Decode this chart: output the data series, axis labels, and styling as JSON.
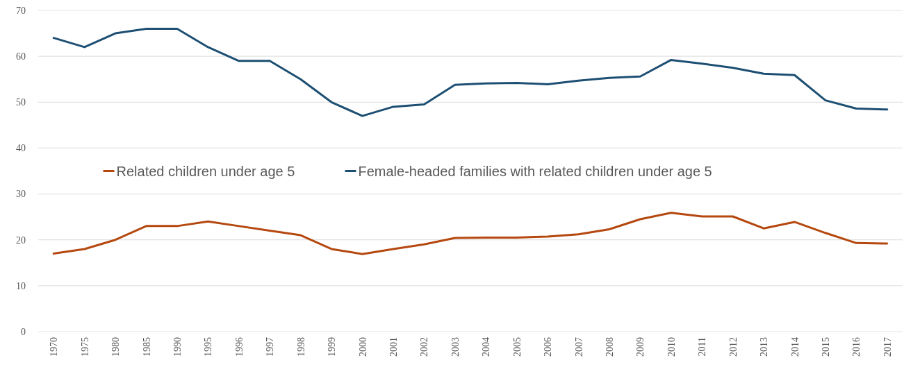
{
  "chart_data": {
    "type": "line",
    "categories": [
      "1970",
      "1975",
      "1980",
      "1985",
      "1990",
      "1995",
      "1996",
      "1997",
      "1998",
      "1999",
      "2000",
      "2001",
      "2002",
      "2003",
      "2004",
      "2005",
      "2006",
      "2007",
      "2008",
      "2009",
      "2010",
      "2011",
      "2012",
      "2013",
      "2014",
      "2015",
      "2016",
      "2017"
    ],
    "series": [
      {
        "name": "Related children under age 5",
        "color": "#b5480f",
        "values": [
          17,
          18,
          20,
          23,
          23,
          24,
          23,
          22,
          21,
          18,
          16.9,
          18,
          19,
          20.4,
          20.5,
          20.5,
          20.7,
          21.2,
          22.3,
          24.5,
          25.9,
          25.1,
          25.1,
          22.5,
          23.9,
          21.5,
          19.3,
          19.2
        ]
      },
      {
        "name": "Female-headed families with related children under age 5",
        "color": "#1d4f73",
        "values": [
          64,
          62,
          65,
          66,
          66,
          62,
          59,
          59,
          55,
          50,
          47,
          49,
          49.5,
          53.8,
          54.1,
          54.2,
          53.9,
          54.7,
          55.3,
          55.6,
          59.2,
          58.4,
          57.5,
          56.2,
          55.9,
          50.4,
          48.6,
          48.4
        ]
      }
    ],
    "ylim": [
      0,
      70
    ],
    "yticks": [
      0,
      10,
      20,
      30,
      40,
      50,
      60,
      70
    ],
    "grid": "y",
    "legend": "center",
    "marker": "none",
    "line_style": "solid"
  }
}
